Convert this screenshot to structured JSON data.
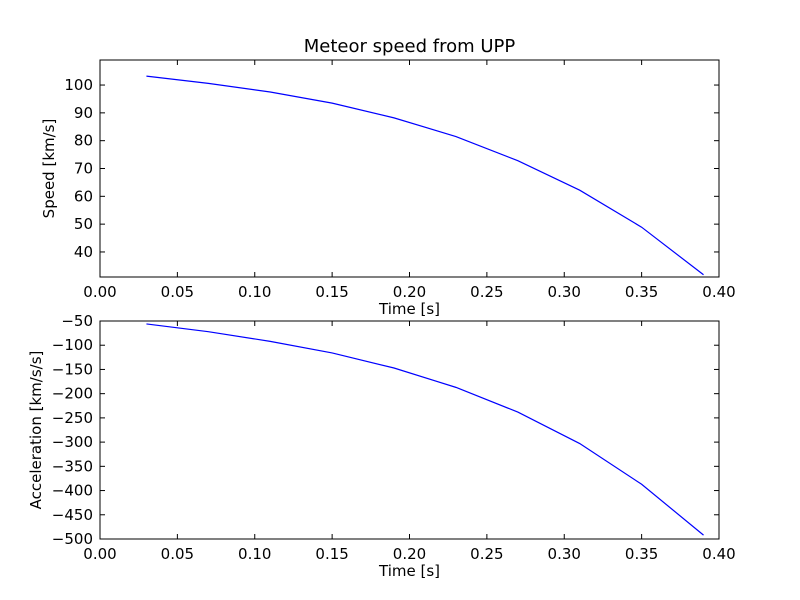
{
  "chart_data": [
    {
      "type": "line",
      "title": "Meteor speed from  UPP",
      "xlabel": "Time [s]",
      "ylabel": "Speed [km/s]",
      "xlim": [
        0.0,
        0.4
      ],
      "ylim": [
        31,
        109
      ],
      "xticks": [
        0.0,
        0.05,
        0.1,
        0.15,
        0.2,
        0.25,
        0.3,
        0.35,
        0.4
      ],
      "xtick_labels": [
        "0.00",
        "0.05",
        "0.10",
        "0.15",
        "0.20",
        "0.25",
        "0.30",
        "0.35",
        "0.40"
      ],
      "yticks": [
        40,
        50,
        60,
        70,
        80,
        90,
        100
      ],
      "ytick_labels": [
        "40",
        "50",
        "60",
        "70",
        "80",
        "90",
        "100"
      ],
      "grid": false,
      "color": "#0000ff",
      "series": [
        {
          "x": [
            0.03,
            0.07,
            0.11,
            0.15,
            0.19,
            0.23,
            0.27,
            0.31,
            0.35,
            0.39
          ],
          "y": [
            103.2,
            100.6,
            97.5,
            93.5,
            88.2,
            81.5,
            72.8,
            62.2,
            48.9,
            31.8
          ]
        }
      ]
    },
    {
      "type": "line",
      "title": "",
      "xlabel": "Time [s]",
      "ylabel": "Acceleration [km/s/s]",
      "xlim": [
        0.0,
        0.4
      ],
      "ylim": [
        -500,
        -50
      ],
      "xticks": [
        0.0,
        0.05,
        0.1,
        0.15,
        0.2,
        0.25,
        0.3,
        0.35,
        0.4
      ],
      "xtick_labels": [
        "0.00",
        "0.05",
        "0.10",
        "0.15",
        "0.20",
        "0.25",
        "0.30",
        "0.35",
        "0.40"
      ],
      "yticks": [
        -500,
        -450,
        -400,
        -350,
        -300,
        -250,
        -200,
        -150,
        -100,
        -50
      ],
      "ytick_labels": [
        "−500",
        "−450",
        "−400",
        "−350",
        "−300",
        "−250",
        "−200",
        "−150",
        "−100",
        "−50"
      ],
      "grid": false,
      "color": "#0000ff",
      "series": [
        {
          "x": [
            0.03,
            0.07,
            0.11,
            0.15,
            0.19,
            0.23,
            0.27,
            0.31,
            0.35,
            0.39
          ],
          "y": [
            -56,
            -72,
            -92,
            -116,
            -147,
            -187,
            -238,
            -303,
            -387,
            -492
          ]
        }
      ]
    }
  ]
}
